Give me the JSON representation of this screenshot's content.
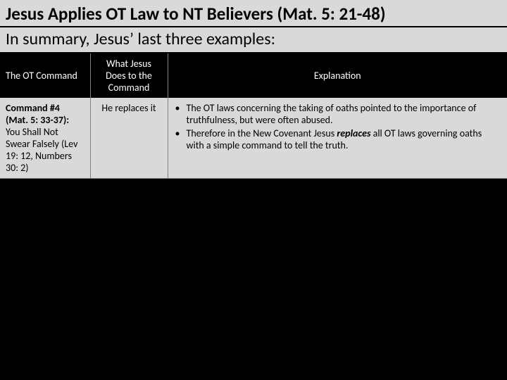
{
  "title": "Jesus Applies OT Law to NT Believers (Mat. 5: 21-48)",
  "subtitle": "In summary, Jesus’ last three examples:",
  "table": {
    "headers": {
      "c1": "The OT Command",
      "c2": "What Jesus Does to the Command",
      "c3": "Explanation"
    },
    "row": {
      "cmd_label": "Command #4",
      "cmd_ref": "(Mat. 5: 33-37):",
      "cmd_body": "You Shall Not Swear Falsely (Lev 19: 12, Numbers 30: 2)",
      "action": "He replaces it",
      "bullet1": "The OT laws concerning the taking of oaths pointed to the importance of truthfulness, but were often abused.",
      "bullet2a": "Therefore in the New Covenant Jesus ",
      "bullet2_emph": "replaces",
      "bullet2b": " all OT laws governing oaths with a simple command to tell the truth."
    }
  }
}
